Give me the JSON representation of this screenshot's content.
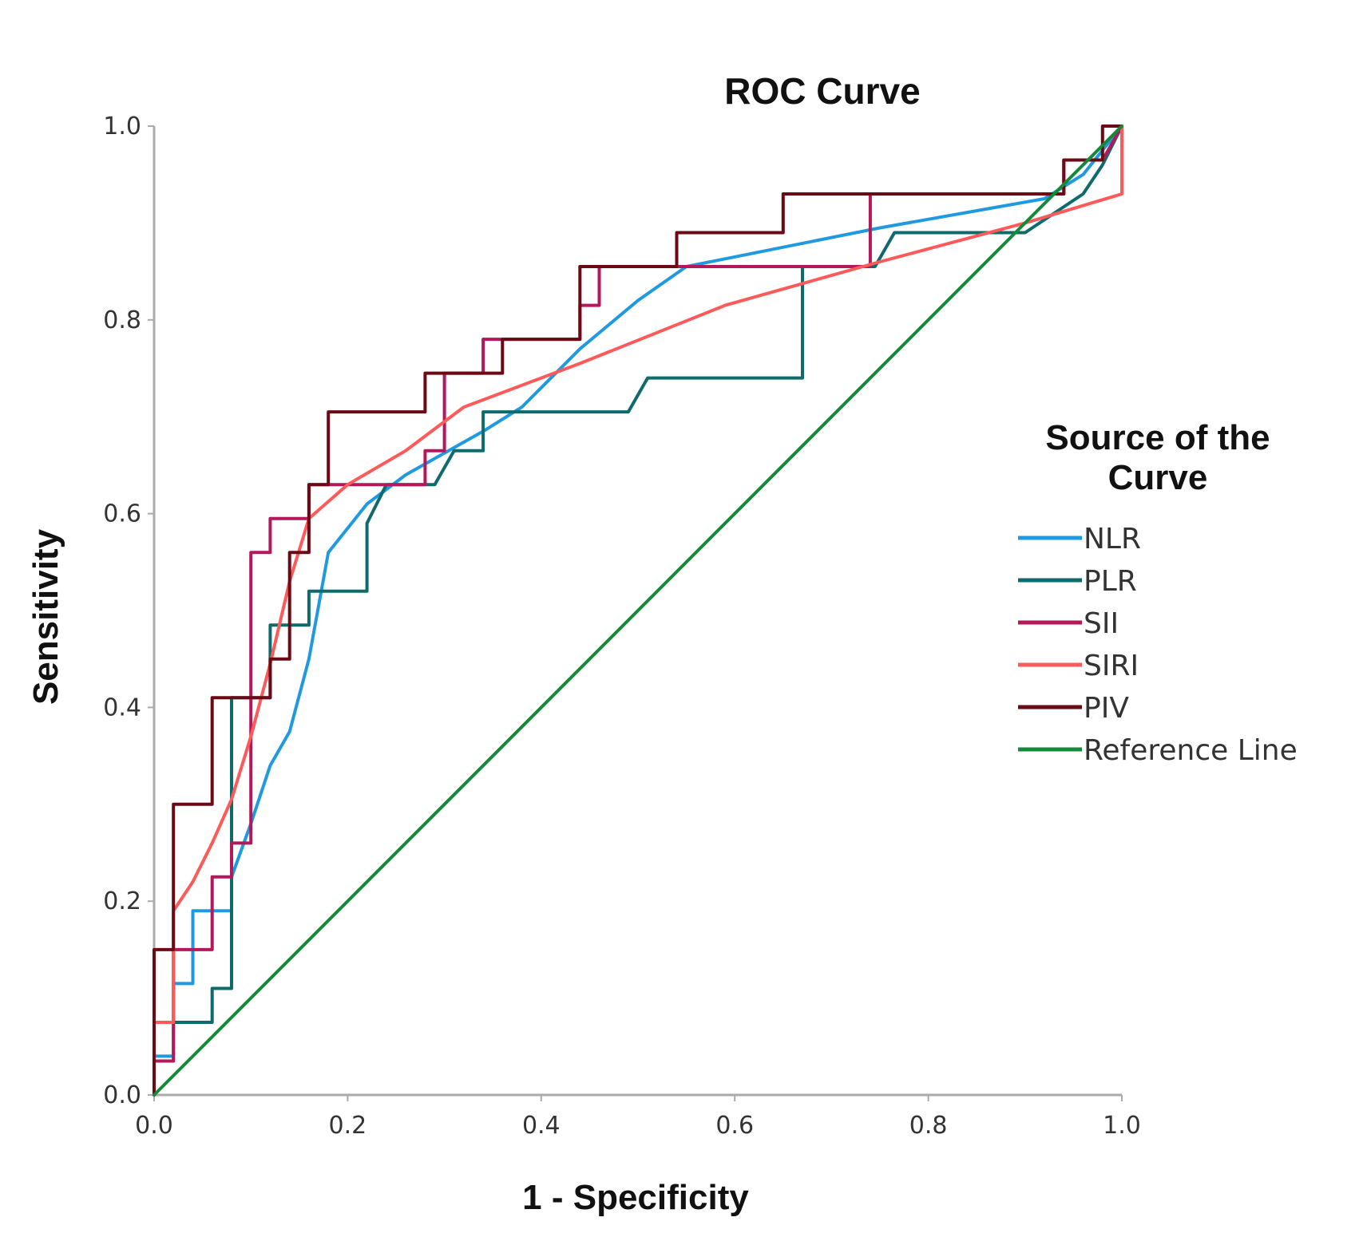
{
  "chart_data": {
    "type": "line",
    "title": "ROC Curve",
    "xlabel": "1 - Specificity",
    "ylabel": "Sensitivity",
    "xlim": [
      0,
      1
    ],
    "ylim": [
      0,
      1
    ],
    "x_ticks": [
      "0.0",
      "0.2",
      "0.4",
      "0.6",
      "0.8",
      "1.0"
    ],
    "y_ticks": [
      "0.0",
      "0.2",
      "0.4",
      "0.6",
      "0.8",
      "1.0"
    ],
    "grid": false,
    "legend": {
      "title_line1": "Source of the",
      "title_line2": "Curve",
      "placement": "right"
    },
    "series": [
      {
        "name": "NLR",
        "color": "#1f9ae0",
        "x": [
          0,
          0,
          0.02,
          0.02,
          0.04,
          0.04,
          0.08,
          0.08,
          0.1,
          0.12,
          0.14,
          0.16,
          0.18,
          0.22,
          0.26,
          0.34,
          0.38,
          0.44,
          0.5,
          0.55,
          0.6,
          0.75,
          0.92,
          0.96,
          1.0
        ],
        "y": [
          0,
          0.04,
          0.04,
          0.115,
          0.115,
          0.19,
          0.19,
          0.225,
          0.28,
          0.34,
          0.375,
          0.45,
          0.56,
          0.61,
          0.64,
          0.685,
          0.71,
          0.77,
          0.82,
          0.855,
          0.865,
          0.895,
          0.925,
          0.95,
          1.0
        ]
      },
      {
        "name": "PLR",
        "color": "#0f6b6b",
        "x": [
          0,
          0,
          0.06,
          0.06,
          0.08,
          0.08,
          0.08,
          0.1,
          0.1,
          0.12,
          0.12,
          0.16,
          0.16,
          0.22,
          0.22,
          0.24,
          0.29,
          0.31,
          0.32,
          0.34,
          0.34,
          0.49,
          0.51,
          0.67,
          0.67,
          0.745,
          0.765,
          0.9,
          0.96,
          0.98,
          1.0
        ],
        "y": [
          0,
          0.075,
          0.075,
          0.11,
          0.11,
          0.41,
          0.41,
          0.41,
          0.41,
          0.41,
          0.485,
          0.485,
          0.52,
          0.52,
          0.59,
          0.63,
          0.63,
          0.665,
          0.665,
          0.665,
          0.705,
          0.705,
          0.74,
          0.74,
          0.855,
          0.855,
          0.89,
          0.89,
          0.93,
          0.96,
          1.0
        ]
      },
      {
        "name": "SII",
        "color": "#b3195a",
        "x": [
          0,
          0,
          0.02,
          0.02,
          0.06,
          0.06,
          0.08,
          0.08,
          0.1,
          0.1,
          0.12,
          0.12,
          0.16,
          0.16,
          0.28,
          0.28,
          0.3,
          0.3,
          0.34,
          0.34,
          0.36,
          0.36,
          0.44,
          0.44,
          0.46,
          0.46,
          0.74,
          0.74,
          0.94,
          0.94,
          0.98,
          1.0
        ],
        "y": [
          0,
          0.035,
          0.035,
          0.15,
          0.15,
          0.225,
          0.225,
          0.26,
          0.26,
          0.56,
          0.56,
          0.595,
          0.595,
          0.63,
          0.63,
          0.665,
          0.665,
          0.745,
          0.745,
          0.78,
          0.78,
          0.78,
          0.78,
          0.815,
          0.815,
          0.855,
          0.855,
          0.93,
          0.93,
          0.965,
          0.965,
          1.0
        ]
      },
      {
        "name": "SIRI",
        "color": "#ff5a5a",
        "x": [
          0,
          0,
          0.02,
          0.02,
          0.04,
          0.06,
          0.08,
          0.1,
          0.12,
          0.14,
          0.16,
          0.2,
          0.26,
          0.32,
          0.44,
          0.59,
          0.75,
          0.9,
          1.0,
          1.0
        ],
        "y": [
          0,
          0.075,
          0.075,
          0.19,
          0.22,
          0.26,
          0.305,
          0.37,
          0.445,
          0.53,
          0.595,
          0.63,
          0.665,
          0.71,
          0.755,
          0.815,
          0.86,
          0.9,
          0.93,
          1.0
        ]
      },
      {
        "name": "PIV",
        "color": "#6b0a14",
        "x": [
          0,
          0,
          0.02,
          0.02,
          0.06,
          0.06,
          0.12,
          0.12,
          0.14,
          0.14,
          0.16,
          0.16,
          0.18,
          0.18,
          0.28,
          0.28,
          0.36,
          0.36,
          0.44,
          0.44,
          0.54,
          0.54,
          0.65,
          0.65,
          0.94,
          0.94,
          0.98,
          0.98,
          1.0
        ],
        "y": [
          0,
          0.15,
          0.15,
          0.3,
          0.3,
          0.41,
          0.41,
          0.45,
          0.45,
          0.56,
          0.56,
          0.63,
          0.63,
          0.705,
          0.705,
          0.745,
          0.745,
          0.78,
          0.78,
          0.855,
          0.855,
          0.89,
          0.89,
          0.93,
          0.93,
          0.965,
          0.965,
          1.0,
          1.0
        ]
      },
      {
        "name": "Reference Line",
        "color": "#15893a",
        "x": [
          0,
          1
        ],
        "y": [
          0,
          1
        ]
      }
    ]
  }
}
